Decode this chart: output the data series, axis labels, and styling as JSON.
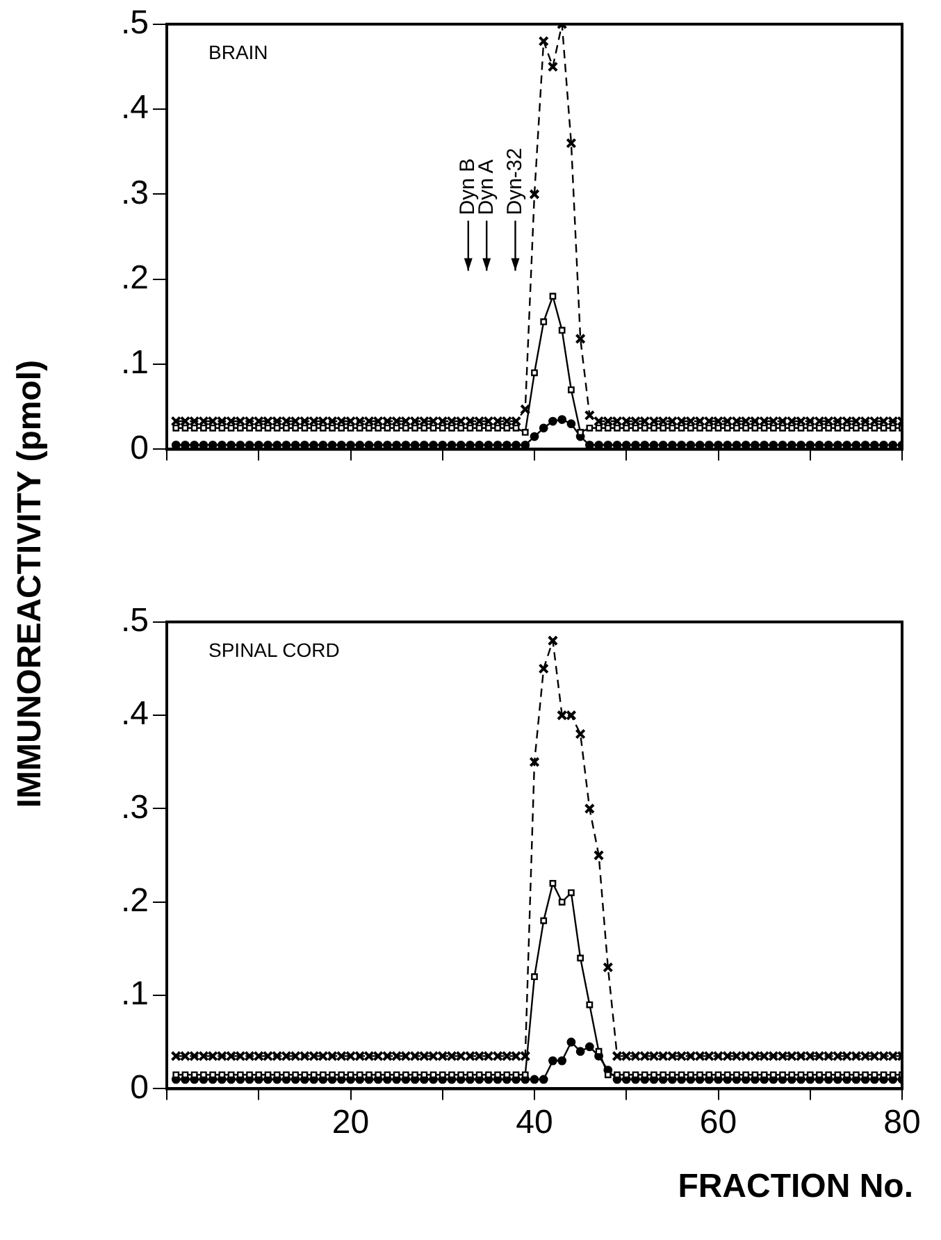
{
  "chart_data": [
    {
      "type": "line",
      "title": "BRAIN",
      "ylabel": "IMMUNOREACTIVITY (pmol)",
      "xlim": [
        0,
        80
      ],
      "xticks": [
        {
          "value": 0,
          "label": null
        },
        {
          "value": 10,
          "label": null
        },
        20,
        {
          "value": 30,
          "label": null
        },
        40,
        {
          "value": 50,
          "label": null
        },
        60,
        {
          "value": 70,
          "label": null
        },
        80
      ],
      "ylim": [
        0,
        0.5
      ],
      "yticks": [
        {
          "value": 0,
          "label": "0"
        },
        {
          "value": 0.1,
          "label": ".1"
        },
        {
          "value": 0.2,
          "label": ".2"
        },
        {
          "value": 0.3,
          "label": ".3"
        },
        {
          "value": 0.4,
          "label": ".4"
        },
        {
          "value": 0.5,
          "label": ".5"
        }
      ],
      "tick_labels": "y",
      "legend": false,
      "annotations": [
        "Dyn B",
        "Dyn A",
        "Dyn-32"
      ],
      "x": [
        1,
        2,
        3,
        4,
        5,
        6,
        7,
        8,
        9,
        10,
        11,
        12,
        13,
        14,
        15,
        16,
        17,
        18,
        19,
        20,
        21,
        22,
        23,
        24,
        25,
        26,
        27,
        28,
        29,
        30,
        31,
        32,
        33,
        34,
        35,
        36,
        37,
        38,
        39,
        40,
        41,
        42,
        43,
        44,
        45,
        46,
        47,
        48,
        49,
        50,
        51,
        52,
        53,
        54,
        55,
        56,
        57,
        58,
        59,
        60,
        61,
        62,
        63,
        64,
        65,
        66,
        67,
        68,
        69,
        70,
        71,
        72,
        73,
        74,
        75,
        76,
        77,
        78,
        79,
        80
      ],
      "series": [
        {
          "color": "#000000",
          "marker": "cross",
          "line_style": "dashed",
          "values": [
            0.033,
            0.033,
            0.033,
            0.033,
            0.033,
            0.033,
            0.033,
            0.033,
            0.033,
            0.033,
            0.033,
            0.033,
            0.033,
            0.033,
            0.033,
            0.033,
            0.033,
            0.033,
            0.033,
            0.033,
            0.033,
            0.033,
            0.033,
            0.033,
            0.033,
            0.033,
            0.033,
            0.033,
            0.033,
            0.033,
            0.033,
            0.033,
            0.033,
            0.033,
            0.033,
            0.033,
            0.033,
            0.033,
            0.047,
            0.3,
            0.48,
            0.45,
            0.5,
            0.36,
            0.13,
            0.04,
            0.033,
            0.033,
            0.033,
            0.033,
            0.033,
            0.033,
            0.033,
            0.033,
            0.033,
            0.033,
            0.033,
            0.033,
            0.033,
            0.033,
            0.033,
            0.033,
            0.033,
            0.033,
            0.033,
            0.033,
            0.033,
            0.033,
            0.033,
            0.033,
            0.033,
            0.033,
            0.033,
            0.033,
            0.033,
            0.033,
            0.033,
            0.033,
            0.033,
            0.033
          ]
        },
        {
          "color": "#000000",
          "marker": "square",
          "line_style": "solid",
          "values": [
            0.025,
            0.025,
            0.025,
            0.025,
            0.025,
            0.025,
            0.025,
            0.025,
            0.025,
            0.025,
            0.025,
            0.025,
            0.025,
            0.025,
            0.025,
            0.025,
            0.025,
            0.025,
            0.025,
            0.025,
            0.025,
            0.025,
            0.025,
            0.025,
            0.025,
            0.025,
            0.025,
            0.025,
            0.025,
            0.025,
            0.025,
            0.025,
            0.025,
            0.025,
            0.025,
            0.025,
            0.025,
            0.025,
            0.02,
            0.09,
            0.15,
            0.18,
            0.14,
            0.07,
            0.02,
            0.025,
            0.025,
            0.025,
            0.025,
            0.025,
            0.025,
            0.025,
            0.025,
            0.025,
            0.025,
            0.025,
            0.025,
            0.025,
            0.025,
            0.025,
            0.025,
            0.025,
            0.025,
            0.025,
            0.025,
            0.025,
            0.025,
            0.025,
            0.025,
            0.025,
            0.025,
            0.025,
            0.025,
            0.025,
            0.025,
            0.025,
            0.025,
            0.025,
            0.025,
            0.025
          ]
        },
        {
          "color": "#000000",
          "marker": "circle",
          "line_style": "solid",
          "values": [
            0.005,
            0.005,
            0.005,
            0.005,
            0.005,
            0.005,
            0.005,
            0.005,
            0.005,
            0.005,
            0.005,
            0.005,
            0.005,
            0.005,
            0.005,
            0.005,
            0.005,
            0.005,
            0.005,
            0.005,
            0.005,
            0.005,
            0.005,
            0.005,
            0.005,
            0.005,
            0.005,
            0.005,
            0.005,
            0.005,
            0.005,
            0.005,
            0.005,
            0.005,
            0.005,
            0.005,
            0.005,
            0.005,
            0.005,
            0.015,
            0.025,
            0.033,
            0.035,
            0.03,
            0.015,
            0.005,
            0.005,
            0.005,
            0.005,
            0.005,
            0.005,
            0.005,
            0.005,
            0.005,
            0.005,
            0.005,
            0.005,
            0.005,
            0.005,
            0.005,
            0.005,
            0.005,
            0.005,
            0.005,
            0.005,
            0.005,
            0.005,
            0.005,
            0.005,
            0.005,
            0.005,
            0.005,
            0.005,
            0.005,
            0.005,
            0.005,
            0.005,
            0.005,
            0.005,
            0.005
          ]
        }
      ]
    },
    {
      "type": "line",
      "title": "SPINAL CORD",
      "xlabel": "FRACTION No.",
      "xlim": [
        0,
        80
      ],
      "xticks": [
        {
          "value": 0,
          "label": null
        },
        {
          "value": 10,
          "label": null
        },
        20,
        {
          "value": 30,
          "label": null
        },
        40,
        {
          "value": 50,
          "label": null
        },
        60,
        {
          "value": 70,
          "label": null
        },
        80
      ],
      "ylim": [
        0,
        0.5
      ],
      "yticks": [
        {
          "value": 0,
          "label": "0"
        },
        {
          "value": 0.1,
          "label": ".1"
        },
        {
          "value": 0.2,
          "label": ".2"
        },
        {
          "value": 0.3,
          "label": ".3"
        },
        {
          "value": 0.4,
          "label": ".4"
        },
        {
          "value": 0.5,
          "label": ".5"
        }
      ],
      "legend": false,
      "x": [
        1,
        2,
        3,
        4,
        5,
        6,
        7,
        8,
        9,
        10,
        11,
        12,
        13,
        14,
        15,
        16,
        17,
        18,
        19,
        20,
        21,
        22,
        23,
        24,
        25,
        26,
        27,
        28,
        29,
        30,
        31,
        32,
        33,
        34,
        35,
        36,
        37,
        38,
        39,
        40,
        41,
        42,
        43,
        44,
        45,
        46,
        47,
        48,
        49,
        50,
        51,
        52,
        53,
        54,
        55,
        56,
        57,
        58,
        59,
        60,
        61,
        62,
        63,
        64,
        65,
        66,
        67,
        68,
        69,
        70,
        71,
        72,
        73,
        74,
        75,
        76,
        77,
        78,
        79,
        80
      ],
      "series": [
        {
          "color": "#000000",
          "marker": "cross",
          "line_style": "dashed",
          "values": [
            0.035,
            0.035,
            0.035,
            0.035,
            0.035,
            0.035,
            0.035,
            0.035,
            0.035,
            0.035,
            0.035,
            0.035,
            0.035,
            0.035,
            0.035,
            0.035,
            0.035,
            0.035,
            0.035,
            0.035,
            0.035,
            0.035,
            0.035,
            0.035,
            0.035,
            0.035,
            0.035,
            0.035,
            0.035,
            0.035,
            0.035,
            0.035,
            0.035,
            0.035,
            0.035,
            0.035,
            0.035,
            0.035,
            0.035,
            0.35,
            0.45,
            0.48,
            0.4,
            0.4,
            0.38,
            0.3,
            0.25,
            0.13,
            0.035,
            0.035,
            0.035,
            0.035,
            0.035,
            0.035,
            0.035,
            0.035,
            0.035,
            0.035,
            0.035,
            0.035,
            0.035,
            0.035,
            0.035,
            0.035,
            0.035,
            0.035,
            0.035,
            0.035,
            0.035,
            0.035,
            0.035,
            0.035,
            0.035,
            0.035,
            0.035,
            0.035,
            0.035,
            0.035,
            0.035,
            0.035
          ]
        },
        {
          "color": "#000000",
          "marker": "square",
          "line_style": "solid",
          "values": [
            0.015,
            0.015,
            0.015,
            0.015,
            0.015,
            0.015,
            0.015,
            0.015,
            0.015,
            0.015,
            0.015,
            0.015,
            0.015,
            0.015,
            0.015,
            0.015,
            0.015,
            0.015,
            0.015,
            0.015,
            0.015,
            0.015,
            0.015,
            0.015,
            0.015,
            0.015,
            0.015,
            0.015,
            0.015,
            0.015,
            0.015,
            0.015,
            0.015,
            0.015,
            0.015,
            0.015,
            0.015,
            0.015,
            0.015,
            0.12,
            0.18,
            0.22,
            0.2,
            0.21,
            0.14,
            0.09,
            0.04,
            0.015,
            0.015,
            0.015,
            0.015,
            0.015,
            0.015,
            0.015,
            0.015,
            0.015,
            0.015,
            0.015,
            0.015,
            0.015,
            0.015,
            0.015,
            0.015,
            0.015,
            0.015,
            0.015,
            0.015,
            0.015,
            0.015,
            0.015,
            0.015,
            0.015,
            0.015,
            0.015,
            0.015,
            0.015,
            0.015,
            0.015,
            0.015,
            0.015
          ]
        },
        {
          "color": "#000000",
          "marker": "circle",
          "line_style": "solid",
          "values": [
            0.01,
            0.01,
            0.01,
            0.01,
            0.01,
            0.01,
            0.01,
            0.01,
            0.01,
            0.01,
            0.01,
            0.01,
            0.01,
            0.01,
            0.01,
            0.01,
            0.01,
            0.01,
            0.01,
            0.01,
            0.01,
            0.01,
            0.01,
            0.01,
            0.01,
            0.01,
            0.01,
            0.01,
            0.01,
            0.01,
            0.01,
            0.01,
            0.01,
            0.01,
            0.01,
            0.01,
            0.01,
            0.01,
            0.01,
            0.01,
            0.01,
            0.03,
            0.03,
            0.05,
            0.04,
            0.045,
            0.035,
            0.02,
            0.01,
            0.01,
            0.01,
            0.01,
            0.01,
            0.01,
            0.01,
            0.01,
            0.01,
            0.01,
            0.01,
            0.01,
            0.01,
            0.01,
            0.01,
            0.01,
            0.01,
            0.01,
            0.01,
            0.01,
            0.01,
            0.01,
            0.01,
            0.01,
            0.01,
            0.01,
            0.01,
            0.01,
            0.01,
            0.01,
            0.01,
            0.01
          ]
        }
      ]
    }
  ]
}
